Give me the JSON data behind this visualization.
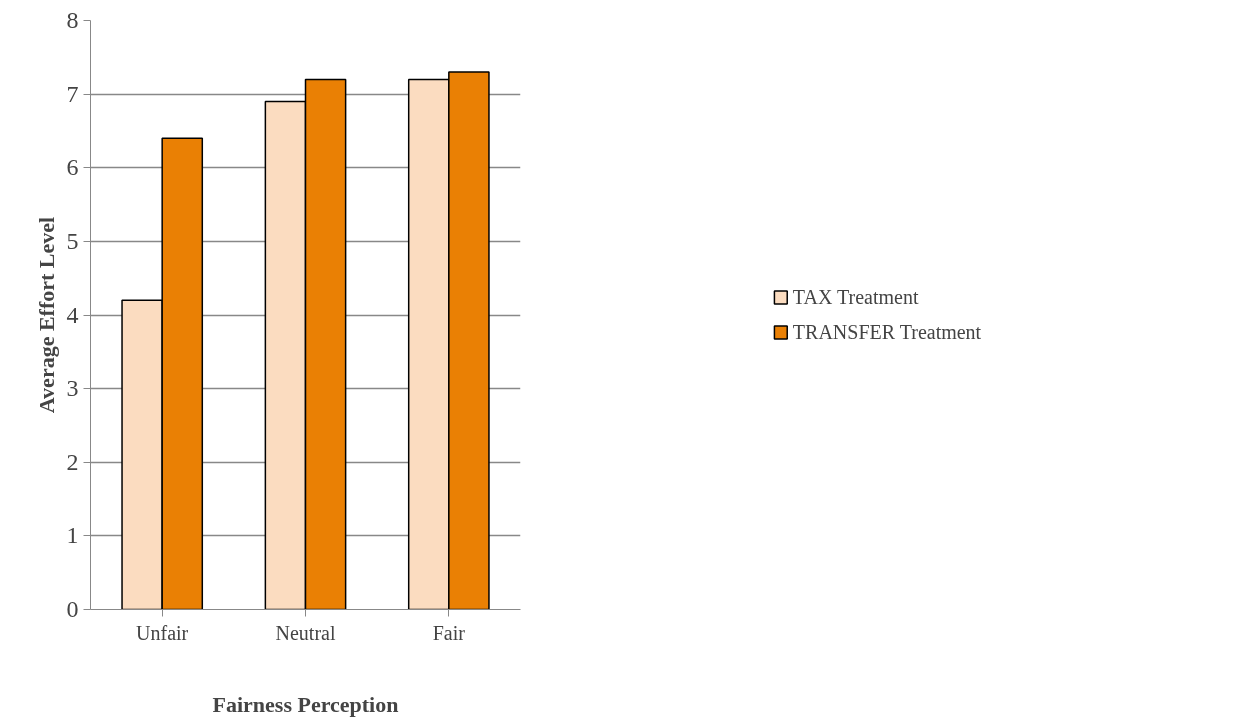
{
  "chart_data": {
    "type": "bar",
    "xlabel": "Fairness Perception",
    "ylabel": "Average Effort Level",
    "categories": [
      "Unfair",
      "Neutral",
      "Fair"
    ],
    "series": [
      {
        "name": "TAX Treatment",
        "color": "#fbdcc0",
        "values": [
          4.2,
          6.9,
          7.2
        ]
      },
      {
        "name": "TRANSFER Treatment",
        "color": "#ea8004",
        "values": [
          6.4,
          7.2,
          7.3
        ]
      }
    ],
    "ylim": [
      0,
      8
    ],
    "yticks": [
      0,
      1,
      2,
      3,
      4,
      5,
      6,
      7,
      8
    ],
    "grid": "y",
    "legend": "right"
  }
}
